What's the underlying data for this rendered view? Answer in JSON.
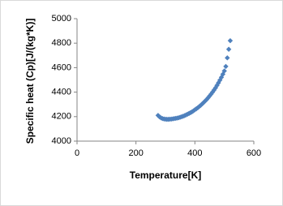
{
  "chart_data": {
    "type": "scatter",
    "x_label": "Temperature[K]",
    "y_label": "Specific heat (Cp)[J/(kg*K)]",
    "xlim": [
      0,
      600
    ],
    "xticks": [
      0,
      200,
      400,
      600
    ],
    "ylim": [
      4000,
      5000
    ],
    "yticks": [
      4000,
      4200,
      4400,
      4600,
      4800,
      5000
    ],
    "grid": false,
    "color": "#4f81bd",
    "x": [
      275,
      280,
      285,
      290,
      295,
      300,
      305,
      310,
      315,
      320,
      325,
      330,
      335,
      340,
      345,
      350,
      355,
      360,
      365,
      370,
      375,
      380,
      385,
      390,
      395,
      400,
      405,
      410,
      415,
      420,
      425,
      430,
      435,
      440,
      445,
      450,
      455,
      460,
      465,
      470,
      475,
      480,
      485,
      490,
      495,
      500,
      505,
      510,
      515,
      520
    ],
    "values": [
      4210,
      4198,
      4190,
      4184,
      4181,
      4179,
      4178,
      4178,
      4179,
      4180,
      4182,
      4184,
      4186,
      4188,
      4191,
      4195,
      4199,
      4203,
      4208,
      4214,
      4220,
      4226,
      4232,
      4239,
      4247,
      4256,
      4264,
      4273,
      4283,
      4293,
      4304,
      4316,
      4328,
      4340,
      4354,
      4369,
      4384,
      4400,
      4417,
      4435,
      4455,
      4476,
      4498,
      4521,
      4546,
      4573,
      4610,
      4680,
      4750,
      4820
    ]
  }
}
